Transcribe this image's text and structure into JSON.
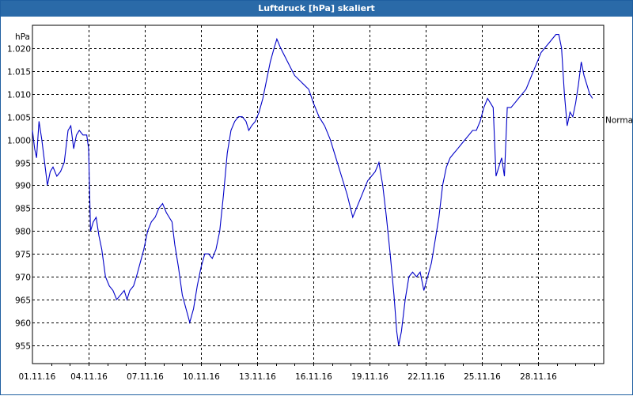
{
  "window": {
    "title": "Luftdruck [hPa] skaliert"
  },
  "colors": {
    "line": "#0000c8",
    "titlebar": "#2a6aa8",
    "grid": "#000000"
  },
  "chart_data": {
    "type": "line",
    "title": "Luftdruck [hPa] skaliert",
    "ylabel": "hPa",
    "xlabel": "",
    "grid": true,
    "ylim": [
      951,
      1025
    ],
    "x_range_days": [
      0,
      30.5
    ],
    "x_ticks": [
      "01.11.16",
      "04.11.16",
      "07.11.16",
      "10.11.16",
      "13.11.16",
      "16.11.16",
      "19.11.16",
      "22.11.16",
      "25.11.16",
      "28.11.16"
    ],
    "y_ticks": [
      955,
      960,
      965,
      970,
      975,
      980,
      985,
      990,
      995,
      1000,
      1005,
      1010,
      1015,
      1020
    ],
    "y_tick_labels": [
      "955",
      "960",
      "965",
      "970",
      "975",
      "980",
      "985",
      "990",
      "995",
      "1.000",
      "1.005",
      "1.010",
      "1.015",
      "1.020"
    ],
    "reference_line": {
      "label": "Normal",
      "value": 1005
    },
    "series": [
      {
        "values": [
          [
            0.0,
            1002
          ],
          [
            0.12,
            998
          ],
          [
            0.22,
            996
          ],
          [
            0.35,
            1004
          ],
          [
            0.5,
            1000
          ],
          [
            0.65,
            995
          ],
          [
            0.8,
            990
          ],
          [
            0.95,
            993
          ],
          [
            1.1,
            994
          ],
          [
            1.3,
            992
          ],
          [
            1.5,
            993
          ],
          [
            1.7,
            995
          ],
          [
            1.9,
            1002
          ],
          [
            2.05,
            1003
          ],
          [
            2.2,
            998
          ],
          [
            2.35,
            1001
          ],
          [
            2.5,
            1002
          ],
          [
            2.7,
            1001
          ],
          [
            2.9,
            1001
          ],
          [
            3.0,
            998
          ],
          [
            3.1,
            980
          ],
          [
            3.25,
            982
          ],
          [
            3.4,
            983
          ],
          [
            3.55,
            979
          ],
          [
            3.7,
            976
          ],
          [
            3.9,
            970
          ],
          [
            4.1,
            968
          ],
          [
            4.3,
            967
          ],
          [
            4.5,
            965
          ],
          [
            4.7,
            966
          ],
          [
            4.9,
            967
          ],
          [
            5.05,
            965
          ],
          [
            5.2,
            967
          ],
          [
            5.4,
            968
          ],
          [
            5.55,
            970
          ],
          [
            5.75,
            973
          ],
          [
            5.95,
            976
          ],
          [
            6.15,
            980
          ],
          [
            6.35,
            982
          ],
          [
            6.55,
            983
          ],
          [
            6.75,
            985
          ],
          [
            6.95,
            986
          ],
          [
            7.15,
            984
          ],
          [
            7.3,
            983
          ],
          [
            7.45,
            982
          ],
          [
            7.6,
            977
          ],
          [
            7.8,
            972
          ],
          [
            8.0,
            966
          ],
          [
            8.2,
            963
          ],
          [
            8.4,
            960
          ],
          [
            8.6,
            963
          ],
          [
            8.8,
            968
          ],
          [
            9.0,
            972
          ],
          [
            9.2,
            975
          ],
          [
            9.4,
            975
          ],
          [
            9.6,
            974
          ],
          [
            9.8,
            976
          ],
          [
            10.0,
            980
          ],
          [
            10.2,
            988
          ],
          [
            10.4,
            997
          ],
          [
            10.6,
            1002
          ],
          [
            10.8,
            1004
          ],
          [
            11.0,
            1005
          ],
          [
            11.2,
            1005
          ],
          [
            11.4,
            1004
          ],
          [
            11.55,
            1002
          ],
          [
            11.7,
            1003
          ],
          [
            11.9,
            1004
          ],
          [
            12.1,
            1006
          ],
          [
            12.3,
            1009
          ],
          [
            12.5,
            1013
          ],
          [
            12.7,
            1017
          ],
          [
            12.9,
            1020
          ],
          [
            13.05,
            1022
          ],
          [
            13.25,
            1020
          ],
          [
            13.5,
            1018
          ],
          [
            13.75,
            1016
          ],
          [
            14.0,
            1014
          ],
          [
            14.25,
            1013
          ],
          [
            14.5,
            1012
          ],
          [
            14.75,
            1011
          ],
          [
            15.0,
            1008
          ],
          [
            15.3,
            1005
          ],
          [
            15.6,
            1003
          ],
          [
            15.9,
            1000
          ],
          [
            16.2,
            996
          ],
          [
            16.5,
            992
          ],
          [
            16.8,
            988
          ],
          [
            17.1,
            983
          ],
          [
            17.3,
            985
          ],
          [
            17.5,
            987
          ],
          [
            17.7,
            989
          ],
          [
            17.9,
            991
          ],
          [
            18.1,
            992
          ],
          [
            18.3,
            993
          ],
          [
            18.5,
            995
          ],
          [
            18.7,
            990
          ],
          [
            18.9,
            983
          ],
          [
            19.1,
            975
          ],
          [
            19.3,
            966
          ],
          [
            19.45,
            958
          ],
          [
            19.55,
            955
          ],
          [
            19.7,
            958
          ],
          [
            19.9,
            965
          ],
          [
            20.1,
            970
          ],
          [
            20.3,
            971
          ],
          [
            20.5,
            970
          ],
          [
            20.7,
            971
          ],
          [
            20.9,
            967
          ],
          [
            21.1,
            970
          ],
          [
            21.3,
            973
          ],
          [
            21.5,
            978
          ],
          [
            21.7,
            983
          ],
          [
            21.9,
            990
          ],
          [
            22.1,
            994
          ],
          [
            22.3,
            996
          ],
          [
            22.5,
            997
          ],
          [
            22.7,
            998
          ],
          [
            22.9,
            999
          ],
          [
            23.1,
            1000
          ],
          [
            23.3,
            1001
          ],
          [
            23.5,
            1002
          ],
          [
            23.7,
            1002
          ],
          [
            23.9,
            1004
          ],
          [
            24.1,
            1007
          ],
          [
            24.3,
            1009
          ],
          [
            24.45,
            1008
          ],
          [
            24.6,
            1007
          ],
          [
            24.75,
            992
          ],
          [
            24.9,
            994
          ],
          [
            25.05,
            996
          ],
          [
            25.2,
            992
          ],
          [
            25.35,
            1007
          ],
          [
            25.55,
            1007
          ],
          [
            25.75,
            1008
          ],
          [
            25.95,
            1009
          ],
          [
            26.15,
            1010
          ],
          [
            26.35,
            1011
          ],
          [
            26.55,
            1013
          ],
          [
            26.75,
            1015
          ],
          [
            26.95,
            1017
          ],
          [
            27.15,
            1019
          ],
          [
            27.35,
            1020
          ],
          [
            27.55,
            1021
          ],
          [
            27.75,
            1022
          ],
          [
            27.95,
            1023
          ],
          [
            28.1,
            1023
          ],
          [
            28.25,
            1020
          ],
          [
            28.4,
            1010
          ],
          [
            28.55,
            1003
          ],
          [
            28.7,
            1006
          ],
          [
            28.85,
            1005
          ],
          [
            29.0,
            1008
          ],
          [
            29.15,
            1012
          ],
          [
            29.3,
            1017
          ],
          [
            29.45,
            1014
          ],
          [
            29.6,
            1012
          ],
          [
            29.75,
            1010
          ],
          [
            29.9,
            1009
          ]
        ]
      }
    ]
  }
}
